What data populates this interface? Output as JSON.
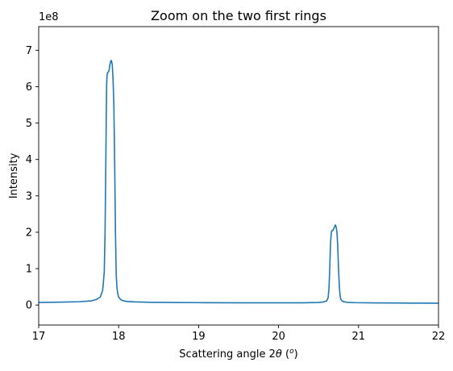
{
  "chart_data": {
    "type": "line",
    "title": "Zoom on the two first rings",
    "xlabel": "Scattering angle 2θ (°)",
    "xlabel_parts": {
      "prefix": "Scattering angle 2",
      "symbol": "θ",
      "open": " (",
      "unit": "o",
      "close": ")"
    },
    "ylabel": "Intensity",
    "y_offset_text": "1e8",
    "xlim": [
      17,
      22
    ],
    "ylim": [
      -0.55,
      7.65
    ],
    "y_scale_multiplier": 100000000,
    "x_ticks": [
      17,
      18,
      19,
      20,
      21,
      22
    ],
    "y_ticks": [
      0,
      1,
      2,
      3,
      4,
      5,
      6,
      7
    ],
    "grid": false,
    "legend": "none",
    "line_color": "#1f77b4",
    "series": [
      {
        "x": [
          17.0,
          17.3,
          17.5,
          17.65,
          17.72,
          17.77,
          17.8,
          17.82,
          17.83,
          17.84,
          17.845,
          17.85,
          17.855,
          17.86,
          17.87,
          17.88,
          17.89,
          17.9,
          17.91,
          17.92,
          17.93,
          17.94,
          17.95,
          17.96,
          17.97,
          17.98,
          17.99,
          18.0,
          18.02,
          18.05,
          18.1,
          18.2,
          18.4,
          18.7,
          19.0,
          19.5,
          20.0,
          20.3,
          20.5,
          20.55,
          20.6,
          20.62,
          20.63,
          20.64,
          20.65,
          20.66,
          20.67,
          20.68,
          20.69,
          20.7,
          20.71,
          20.72,
          20.73,
          20.74,
          20.75,
          20.76,
          20.77,
          20.78,
          20.8,
          20.85,
          20.95,
          21.2,
          21.5,
          22.0
        ],
        "y": [
          0.07,
          0.08,
          0.09,
          0.11,
          0.15,
          0.22,
          0.4,
          0.9,
          2.0,
          4.0,
          5.2,
          6.1,
          6.3,
          6.38,
          6.4,
          6.45,
          6.6,
          6.7,
          6.72,
          6.6,
          6.2,
          5.5,
          4.0,
          2.0,
          0.8,
          0.45,
          0.3,
          0.22,
          0.16,
          0.12,
          0.1,
          0.085,
          0.075,
          0.068,
          0.065,
          0.062,
          0.06,
          0.062,
          0.07,
          0.08,
          0.11,
          0.2,
          0.45,
          1.0,
          1.7,
          2.0,
          2.05,
          2.05,
          2.1,
          2.15,
          2.2,
          2.15,
          2.0,
          1.6,
          1.0,
          0.5,
          0.25,
          0.15,
          0.1,
          0.075,
          0.065,
          0.058,
          0.055,
          0.05
        ]
      }
    ]
  }
}
